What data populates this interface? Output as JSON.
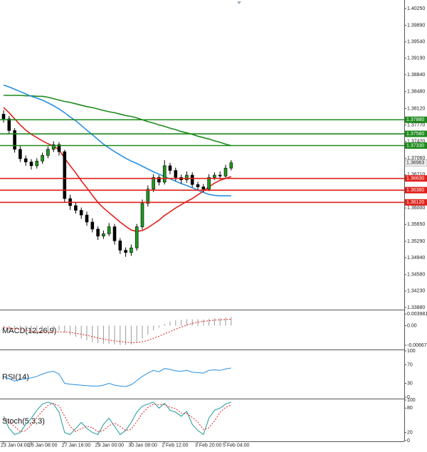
{
  "chart_data": {
    "type": "candlestick",
    "categories": [
      "23 Jan 04:00",
      null,
      null,
      null,
      null,
      "26 Jan 08:00",
      null,
      null,
      null,
      null,
      null,
      "27 Jan 16:00",
      null,
      null,
      null,
      null,
      null,
      "29 Jan 00:00",
      null,
      null,
      null,
      null,
      null,
      "30 Jan 08:00",
      null,
      null,
      null,
      null,
      null,
      "2 Feb 12:00",
      null,
      null,
      null,
      null,
      null,
      "3 Feb 20:00",
      null,
      null,
      null,
      null,
      "5 Feb 04:00",
      null
    ],
    "candles": [
      [
        1.38,
        1.3808,
        1.3782,
        1.379
      ],
      [
        1.379,
        1.3796,
        1.3758,
        1.3765
      ],
      [
        1.3765,
        1.377,
        1.3718,
        1.3725
      ],
      [
        1.3725,
        1.3732,
        1.3698,
        1.3705
      ],
      [
        1.3705,
        1.3712,
        1.369,
        1.3698
      ],
      [
        1.3698,
        1.3704,
        1.3682,
        1.369
      ],
      [
        1.369,
        1.3706,
        1.3684,
        1.37
      ],
      [
        1.37,
        1.3718,
        1.3694,
        1.3712
      ],
      [
        1.3712,
        1.3731,
        1.3706,
        1.3725
      ],
      [
        1.3725,
        1.3742,
        1.3719,
        1.3735
      ],
      [
        1.3735,
        1.374,
        1.3712,
        1.372
      ],
      [
        1.372,
        1.3724,
        1.3612,
        1.362
      ],
      [
        1.362,
        1.3628,
        1.3596,
        1.3605
      ],
      [
        1.3605,
        1.3612,
        1.3588,
        1.3595
      ],
      [
        1.3595,
        1.3601,
        1.3577,
        1.3585
      ],
      [
        1.3585,
        1.3592,
        1.3562,
        1.357
      ],
      [
        1.357,
        1.3578,
        1.3548,
        1.3555
      ],
      [
        1.3555,
        1.3561,
        1.3532,
        1.354
      ],
      [
        1.354,
        1.3552,
        1.3534,
        1.3545
      ],
      [
        1.3545,
        1.3568,
        1.354,
        1.356
      ],
      [
        1.356,
        1.3566,
        1.3522,
        1.353
      ],
      [
        1.353,
        1.3536,
        1.3502,
        1.351
      ],
      [
        1.351,
        1.3516,
        1.3496,
        1.3505
      ],
      [
        1.3505,
        1.3522,
        1.3498,
        1.3515
      ],
      [
        1.3515,
        1.3566,
        1.3509,
        1.356
      ],
      [
        1.356,
        1.3618,
        1.3554,
        1.361
      ],
      [
        1.361,
        1.3648,
        1.3603,
        1.364
      ],
      [
        1.364,
        1.3672,
        1.3634,
        1.3665
      ],
      [
        1.3665,
        1.367,
        1.3648,
        1.3655
      ],
      [
        1.3655,
        1.3702,
        1.365,
        1.369
      ],
      [
        1.369,
        1.3696,
        1.3672,
        1.368
      ],
      [
        1.368,
        1.3686,
        1.3658,
        1.3665
      ],
      [
        1.3665,
        1.3671,
        1.3652,
        1.366
      ],
      [
        1.366,
        1.3678,
        1.3654,
        1.367
      ],
      [
        1.367,
        1.3676,
        1.3644,
        1.365
      ],
      [
        1.365,
        1.3656,
        1.3638,
        1.3645
      ],
      [
        1.3645,
        1.3651,
        1.3634,
        1.364
      ],
      [
        1.364,
        1.3672,
        1.3636,
        1.3665
      ],
      [
        1.3665,
        1.3676,
        1.366,
        1.367
      ],
      [
        1.367,
        1.3678,
        1.3661,
        1.3668
      ],
      [
        1.3668,
        1.3692,
        1.3664,
        1.3685
      ],
      [
        1.3685,
        1.3702,
        1.368,
        1.36963
      ]
    ],
    "up_color": "#1e9a1e",
    "down_color": "#000000",
    "ylim": [
      1.33834,
      1.40432
    ],
    "yticks": [
      {
        "value": 1.4025,
        "label": "1.40250"
      },
      {
        "value": 1.3989,
        "label": "1.39890"
      },
      {
        "value": 1.3954,
        "label": "1.39540"
      },
      {
        "value": 1.3919,
        "label": "1.39190"
      },
      {
        "value": 1.3884,
        "label": "1.38840"
      },
      {
        "value": 1.3848,
        "label": "1.38480"
      },
      {
        "value": 1.3812,
        "label": "1.38120"
      },
      {
        "value": 1.3777,
        "label": "1.37770"
      },
      {
        "value": 1.3742,
        "label": "1.37420"
      },
      {
        "value": 1.3706,
        "label": "1.37060"
      },
      {
        "value": 1.3671,
        "label": "1.36710"
      },
      {
        "value": 1.36,
        "label": "1.36000"
      },
      {
        "value": 1.3565,
        "label": "1.35650"
      },
      {
        "value": 1.3529,
        "label": "1.35290"
      },
      {
        "value": 1.3494,
        "label": "1.34940"
      },
      {
        "value": 1.3458,
        "label": "1.34580"
      },
      {
        "value": 1.3423,
        "label": "1.34230"
      },
      {
        "value": 1.3388,
        "label": "1.33880"
      }
    ],
    "moving_averages": [
      {
        "color": "#1c8a1c",
        "values": [
          1.384,
          1.384,
          1.384,
          1.384,
          1.3839,
          1.3839,
          1.3838,
          1.3838,
          1.3836,
          1.3833,
          1.383,
          1.3827,
          1.3825,
          1.3822,
          1.3819,
          1.3816,
          1.3814,
          1.3811,
          1.3808,
          1.3805,
          1.3803,
          1.38,
          1.3797,
          1.3795,
          1.3792,
          1.3788,
          1.3784,
          1.3781,
          1.3777,
          1.3774,
          1.377,
          1.3767,
          1.3763,
          1.376,
          1.3757,
          1.3753,
          1.375,
          1.3747,
          1.3743,
          1.374,
          1.3736,
          1.3733
        ]
      },
      {
        "color": "#2a8ee0",
        "values": [
          1.3862,
          1.3858,
          1.3853,
          1.3848,
          1.3843,
          1.3838,
          1.3834,
          1.383,
          1.3824,
          1.3818,
          1.3811,
          1.3803,
          1.3794,
          1.3786,
          1.3776,
          1.3766,
          1.3756,
          1.3746,
          1.3736,
          1.3728,
          1.372,
          1.3713,
          1.3706,
          1.37,
          1.3695,
          1.3689,
          1.3683,
          1.3677,
          1.3672,
          1.3667,
          1.3662,
          1.3657,
          1.3652,
          1.3648,
          1.3643,
          1.3638,
          1.3633,
          1.3629,
          1.3627,
          1.3626,
          1.3626,
          1.3626
        ]
      },
      {
        "color": "#e0201b",
        "values": [
          1.3814,
          1.3803,
          1.379,
          1.3777,
          1.3766,
          1.3757,
          1.375,
          1.3743,
          1.3737,
          1.3732,
          1.3724,
          1.3706,
          1.369,
          1.3675,
          1.3658,
          1.3643,
          1.3627,
          1.3612,
          1.36,
          1.359,
          1.358,
          1.357,
          1.3561,
          1.3553,
          1.355,
          1.3552,
          1.3558,
          1.3566,
          1.3574,
          1.3584,
          1.3592,
          1.36,
          1.3607,
          1.3614,
          1.362,
          1.3628,
          1.3636,
          1.3645,
          1.3653,
          1.3659,
          1.3663,
          1.3667
        ]
      }
    ],
    "levels": [
      {
        "value": 1.3788,
        "label": "1.37880",
        "color": "#1c8a1c"
      },
      {
        "value": 1.3758,
        "label": "1.37580",
        "color": "#1c8a1c"
      },
      {
        "value": 1.3733,
        "label": "1.37330",
        "color": "#1c8a1c"
      },
      {
        "value": 1.3663,
        "label": "1.36630",
        "color": "#e0201b"
      },
      {
        "value": 1.3638,
        "label": "1.36380",
        "color": "#e0201b"
      },
      {
        "value": 1.3612,
        "label": "1.36120",
        "color": "#e0201b"
      }
    ],
    "last_price": 1.36963,
    "indicators": [
      {
        "name": "MACD(12,26,9)",
        "ylim": [
          -0.0079,
          0.005
        ],
        "yticks": [
          0.003981,
          {
            "value": 0,
            "label": "0.00"
          },
          -0.006679
        ],
        "series": [
          {
            "style": "bars",
            "color": "#9a9a9a",
            "values": [
              -0.0008,
              -0.0012,
              -0.0018,
              -0.0022,
              -0.0026,
              -0.0028,
              -0.0028,
              -0.0026,
              -0.0022,
              -0.0018,
              -0.0016,
              -0.0024,
              -0.0032,
              -0.0038,
              -0.0044,
              -0.005,
              -0.0056,
              -0.006,
              -0.0062,
              -0.0062,
              -0.0064,
              -0.0066,
              -0.0066,
              -0.0064,
              -0.0056,
              -0.0044,
              -0.003,
              -0.0016,
              -0.0006,
              0.0006,
              0.0014,
              0.0018,
              0.002,
              0.0022,
              0.0022,
              0.0022,
              0.0021,
              0.0023,
              0.0025,
              0.0026,
              0.0028,
              0.003
            ]
          },
          {
            "style": "dashed",
            "color": "#e0201b",
            "values": [
              -0.0006,
              -0.0008,
              -0.001,
              -0.0013,
              -0.0016,
              -0.0019,
              -0.0021,
              -0.0022,
              -0.0022,
              -0.0022,
              -0.0021,
              -0.0021,
              -0.0023,
              -0.0026,
              -0.0029,
              -0.0033,
              -0.0037,
              -0.0042,
              -0.0046,
              -0.0049,
              -0.0052,
              -0.0054,
              -0.0056,
              -0.0058,
              -0.0058,
              -0.0055,
              -0.005,
              -0.0043,
              -0.0036,
              -0.0028,
              -0.002,
              -0.0012,
              -0.0005,
              0.0002,
              0.0008,
              0.0012,
              0.0015,
              0.0017,
              0.0019,
              0.002,
              0.0021,
              0.0022
            ]
          }
        ]
      },
      {
        "name": "RSI(14)",
        "ylim": [
          0,
          100
        ],
        "yticks": [
          100,
          70,
          30,
          0
        ],
        "series": [
          {
            "style": "solid",
            "color": "#2a8ee0",
            "values": [
              45,
              40,
              35,
              38,
              40,
              42,
              45,
              50,
              54,
              56,
              50,
              30,
              28,
              27,
              26,
              25,
              24,
              24,
              26,
              30,
              26,
              24,
              23,
              27,
              36,
              45,
              52,
              58,
              55,
              62,
              60,
              57,
              56,
              58,
              54,
              53,
              52,
              58,
              59,
              58,
              61,
              63
            ]
          }
        ]
      },
      {
        "name": "Stoch(5,3,3)",
        "ylim": [
          0,
          100
        ],
        "yticks": [
          100,
          80,
          20,
          0
        ],
        "series": [
          {
            "style": "solid",
            "color": "#1e9a9a",
            "values": [
              60,
              30,
              15,
              20,
              40,
              55,
              75,
              90,
              95,
              90,
              70,
              20,
              15,
              30,
              45,
              30,
              20,
              15,
              40,
              55,
              35,
              15,
              25,
              45,
              70,
              85,
              90,
              95,
              80,
              92,
              75,
              70,
              60,
              72,
              40,
              25,
              15,
              55,
              75,
              80,
              90,
              95
            ]
          },
          {
            "style": "dashed",
            "color": "#e0201b",
            "values": [
              55,
              45,
              35,
              22,
              25,
              38,
              57,
              73,
              87,
              92,
              85,
              60,
              35,
              22,
              30,
              35,
              32,
              22,
              25,
              37,
              43,
              35,
              25,
              28,
              47,
              67,
              82,
              90,
              88,
              89,
              82,
              79,
              68,
              67,
              57,
              46,
              27,
              32,
              48,
              70,
              82,
              88
            ]
          }
        ]
      }
    ]
  }
}
